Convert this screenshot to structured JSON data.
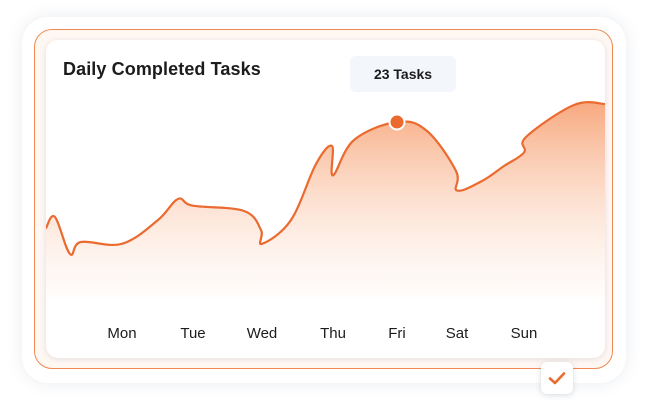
{
  "colors": {
    "accent": "#ea6a2f",
    "fill_top": "#f7a173",
    "frame": "#ef8a55"
  },
  "tooltip": {
    "label": "23 Tasks"
  },
  "badge": {
    "icon": "check-icon"
  },
  "chart_data": {
    "type": "area",
    "title": "Daily Completed Tasks",
    "xlabel": "",
    "ylabel": "",
    "categories": [
      "Mon",
      "Tue",
      "Wed",
      "Thu",
      "Fri",
      "Sat",
      "Sun"
    ],
    "series": [
      {
        "values": [
          7,
          12,
          7,
          16,
          23,
          14,
          19
        ]
      }
    ],
    "highlight": {
      "category": "Fri",
      "value": 23,
      "label": "23 Tasks"
    },
    "ylim": [
      0,
      28
    ],
    "grid": false,
    "legend": "none"
  }
}
